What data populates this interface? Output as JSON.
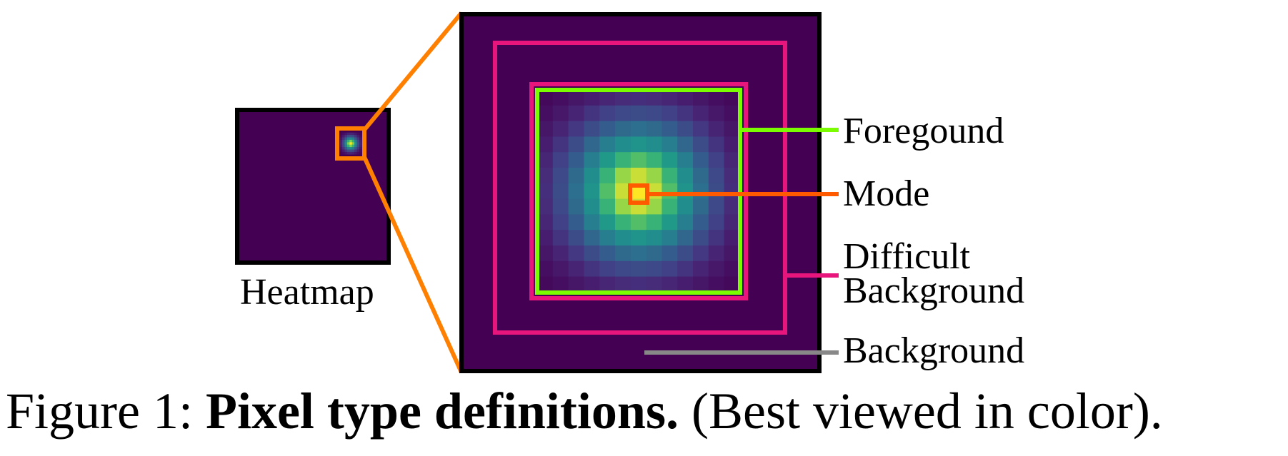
{
  "labels": {
    "heatmap": "Heatmap",
    "foreground": "Foregound",
    "mode": "Mode",
    "difficult_line1": "Difficult",
    "difficult_line2": "Background",
    "background": "Background"
  },
  "caption": {
    "prefix": "Figure 1: ",
    "title": "Pixel type definitions.",
    "suffix": " (Best viewed in color)."
  },
  "colors": {
    "heatmap_background": "#440154",
    "frame": "#000000",
    "zoom_connector": "#ff8000",
    "foreground": "#7cfc00",
    "mode": "#ff5a00",
    "difficult_background": "#e8157c",
    "background_marker": "#888888"
  }
}
